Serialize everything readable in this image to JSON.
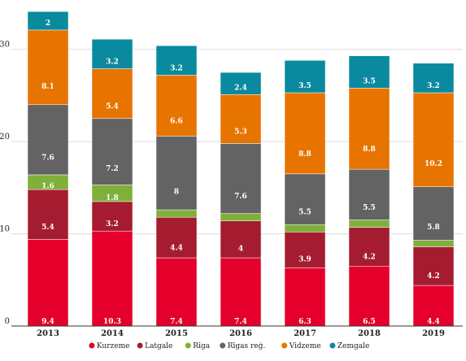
{
  "chart_data": {
    "type": "bar",
    "stacked": true,
    "title": "",
    "xlabel": "",
    "ylabel": "",
    "categories": [
      "2013",
      "2014",
      "2015",
      "2016",
      "2017",
      "2018",
      "2019"
    ],
    "ylim": [
      0,
      35
    ],
    "yticks": [
      0,
      10,
      20,
      30
    ],
    "grid": "horizontal",
    "legend_position": "bottom",
    "series": [
      {
        "name": "Kurzeme",
        "color": "#e4002b",
        "values": [
          9.4,
          10.3,
          7.4,
          7.4,
          6.3,
          6.5,
          4.4
        ],
        "labels": [
          "9.4",
          "10.3",
          "7.4",
          "7.4",
          "6.3",
          "6.5",
          "4.4"
        ]
      },
      {
        "name": "Latgale",
        "color": "#a51c30",
        "values": [
          5.4,
          3.2,
          4.4,
          4,
          3.9,
          4.2,
          4.2
        ],
        "labels": [
          "5.4",
          "3.2",
          "4.4",
          "4",
          "3.9",
          "4.2",
          "4.2"
        ]
      },
      {
        "name": "Rīga",
        "color": "#7fb03a",
        "values": [
          1.6,
          1.8,
          0.8,
          0.8,
          0.8,
          0.8,
          0.7
        ],
        "labels": [
          "1.6",
          "1.8",
          "",
          "",
          "",
          "",
          ""
        ]
      },
      {
        "name": "Rīgas reģ.",
        "color": "#636363",
        "values": [
          7.6,
          7.2,
          8,
          7.6,
          5.5,
          5.5,
          5.8
        ],
        "labels": [
          "7.6",
          "7.2",
          "8",
          "7.6",
          "5.5",
          "5.5",
          "5.8"
        ]
      },
      {
        "name": "Vidzeme",
        "color": "#e87400",
        "values": [
          8.1,
          5.4,
          6.6,
          5.3,
          8.8,
          8.8,
          10.2
        ],
        "labels": [
          "8.1",
          "5.4",
          "6.6",
          "5.3",
          "8.8",
          "8.8",
          "10.2"
        ]
      },
      {
        "name": "Zemgale",
        "color": "#0a8a9e",
        "values": [
          2,
          3.2,
          3.2,
          2.4,
          3.5,
          3.5,
          3.2
        ],
        "labels": [
          "2",
          "3.2",
          "3.2",
          "2.4",
          "3.5",
          "3.5",
          "3.2"
        ]
      }
    ]
  }
}
